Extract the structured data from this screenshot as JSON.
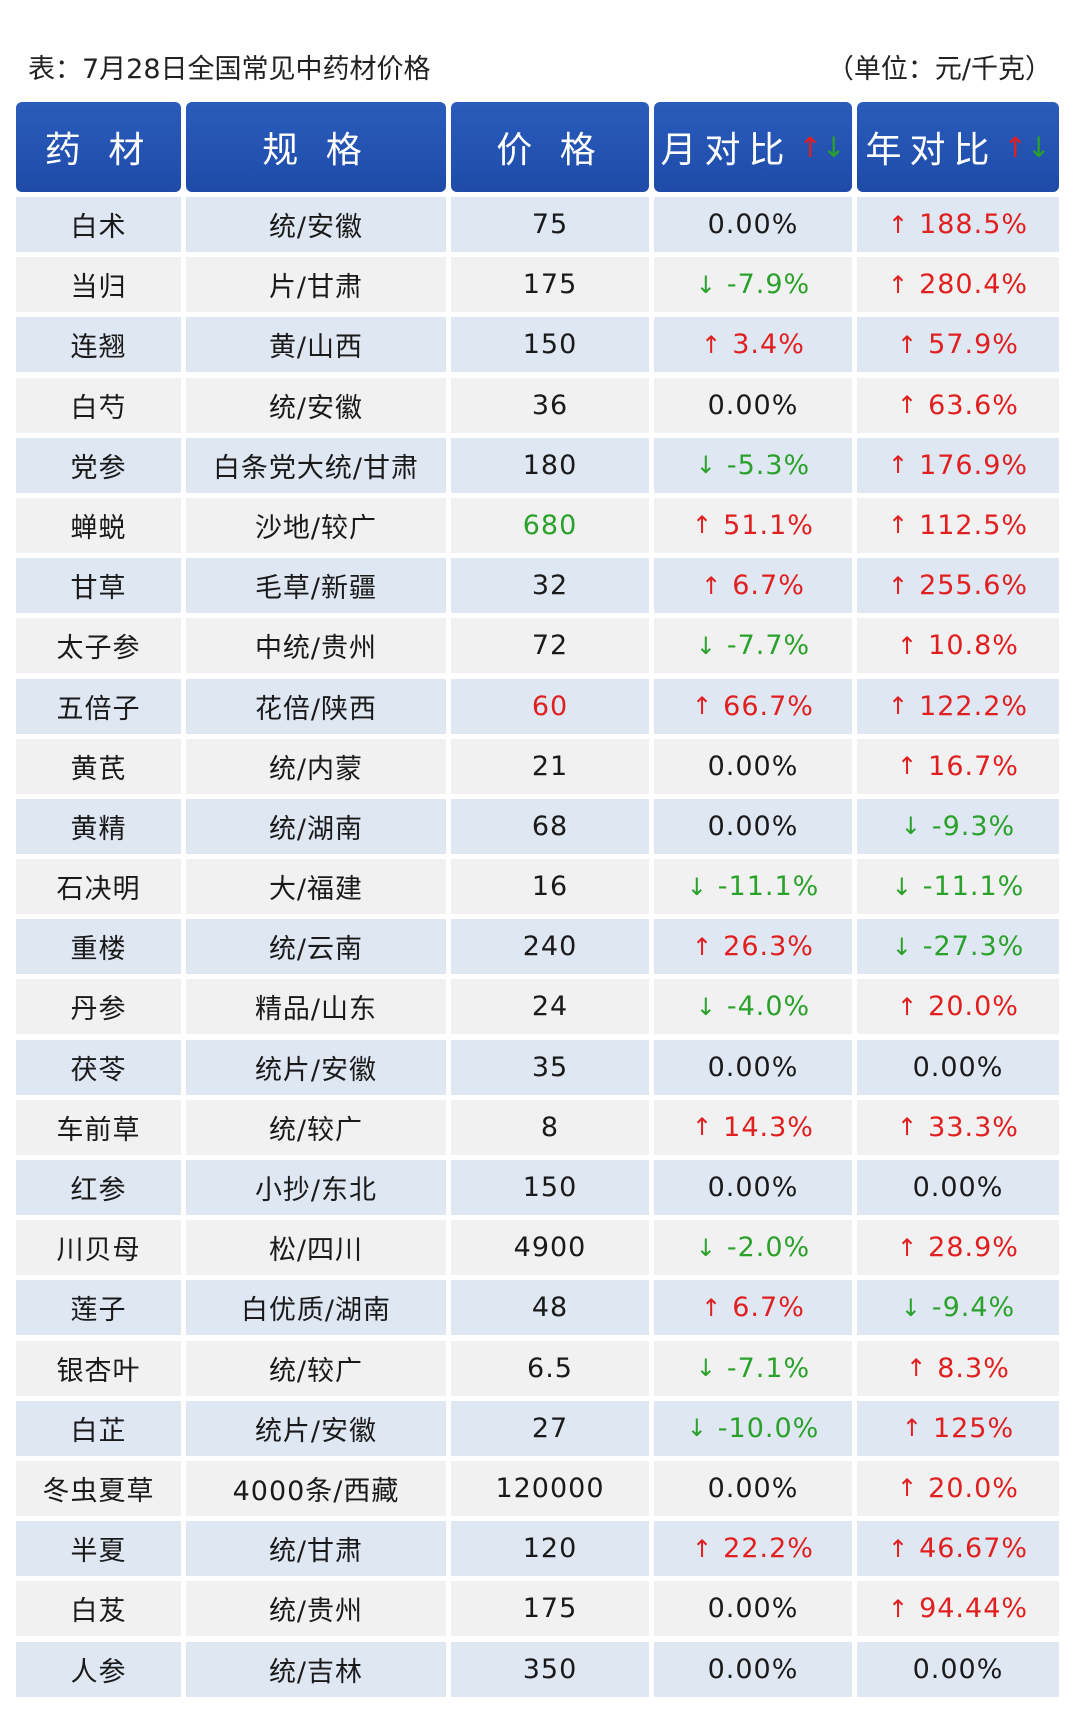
{
  "caption": {
    "title": "表：7月28日全国常见中药材价格",
    "unit": "（单位：元/千克）"
  },
  "header": [
    "药 材",
    "规 格",
    "价 格",
    "月对比",
    "年对比"
  ],
  "colors": {
    "header_bg": "#2a5cbc",
    "row_blue": "#dfe7f3",
    "row_gray": "#f1f1f1",
    "up": "#e02020",
    "down": "#2aa12a"
  },
  "rows": [
    {
      "name": "白术",
      "spec": "统/安徽",
      "price": "75",
      "month": {
        "dir": "flat",
        "value": "0.00%"
      },
      "year": {
        "dir": "up",
        "value": "188.5%"
      }
    },
    {
      "name": "当归",
      "spec": "片/甘肃",
      "price": "175",
      "month": {
        "dir": "down",
        "value": "-7.9%"
      },
      "year": {
        "dir": "up",
        "value": "280.4%"
      }
    },
    {
      "name": "连翘",
      "spec": "黄/山西",
      "price": "150",
      "month": {
        "dir": "up",
        "value": "3.4%"
      },
      "year": {
        "dir": "up",
        "value": "57.9%"
      }
    },
    {
      "name": "白芍",
      "spec": "统/安徽",
      "price": "36",
      "month": {
        "dir": "flat",
        "value": "0.00%"
      },
      "year": {
        "dir": "up",
        "value": "63.6%"
      }
    },
    {
      "name": "党参",
      "spec": "白条党大统/甘肃",
      "price": "180",
      "month": {
        "dir": "down",
        "value": "-5.3%"
      },
      "year": {
        "dir": "up",
        "value": "176.9%"
      }
    },
    {
      "name": "蝉蜕",
      "spec": "沙地/较广",
      "price": "680",
      "price_color": "green",
      "month": {
        "dir": "up",
        "value": "51.1%"
      },
      "year": {
        "dir": "up",
        "value": "112.5%"
      }
    },
    {
      "name": "甘草",
      "spec": "毛草/新疆",
      "price": "32",
      "month": {
        "dir": "up",
        "value": "6.7%"
      },
      "year": {
        "dir": "up",
        "value": "255.6%"
      }
    },
    {
      "name": "太子参",
      "spec": "中统/贵州",
      "price": "72",
      "month": {
        "dir": "down",
        "value": "-7.7%"
      },
      "year": {
        "dir": "up",
        "value": "10.8%"
      }
    },
    {
      "name": "五倍子",
      "spec": "花倍/陕西",
      "price": "60",
      "price_color": "red",
      "month": {
        "dir": "up",
        "value": "66.7%"
      },
      "year": {
        "dir": "up",
        "value": "122.2%"
      }
    },
    {
      "name": "黄芪",
      "spec": "统/内蒙",
      "price": "21",
      "month": {
        "dir": "flat",
        "value": "0.00%"
      },
      "year": {
        "dir": "up",
        "value": "16.7%"
      }
    },
    {
      "name": "黄精",
      "spec": "统/湖南",
      "price": "68",
      "month": {
        "dir": "flat",
        "value": "0.00%"
      },
      "year": {
        "dir": "down",
        "value": "-9.3%"
      }
    },
    {
      "name": "石决明",
      "spec": "大/福建",
      "price": "16",
      "month": {
        "dir": "down",
        "value": "-11.1%"
      },
      "year": {
        "dir": "down",
        "value": "-11.1%"
      }
    },
    {
      "name": "重楼",
      "spec": "统/云南",
      "price": "240",
      "month": {
        "dir": "up",
        "value": "26.3%"
      },
      "year": {
        "dir": "down",
        "value": "-27.3%"
      }
    },
    {
      "name": "丹参",
      "spec": "精品/山东",
      "price": "24",
      "month": {
        "dir": "down",
        "value": "-4.0%"
      },
      "year": {
        "dir": "up",
        "value": "20.0%"
      }
    },
    {
      "name": "茯苓",
      "spec": "统片/安徽",
      "price": "35",
      "month": {
        "dir": "flat",
        "value": "0.00%"
      },
      "year": {
        "dir": "flat",
        "value": "0.00%"
      }
    },
    {
      "name": "车前草",
      "spec": "统/较广",
      "price": "8",
      "month": {
        "dir": "up",
        "value": "14.3%"
      },
      "year": {
        "dir": "up",
        "value": "33.3%"
      }
    },
    {
      "name": "红参",
      "spec": "小抄/东北",
      "price": "150",
      "month": {
        "dir": "flat",
        "value": "0.00%"
      },
      "year": {
        "dir": "flat",
        "value": "0.00%"
      }
    },
    {
      "name": "川贝母",
      "spec": "松/四川",
      "price": "4900",
      "month": {
        "dir": "down",
        "value": "-2.0%"
      },
      "year": {
        "dir": "up",
        "value": "28.9%"
      }
    },
    {
      "name": "莲子",
      "spec": "白优质/湖南",
      "price": "48",
      "month": {
        "dir": "up",
        "value": "6.7%"
      },
      "year": {
        "dir": "down",
        "value": "-9.4%"
      }
    },
    {
      "name": "银杏叶",
      "spec": "统/较广",
      "price": "6.5",
      "month": {
        "dir": "down",
        "value": "-7.1%"
      },
      "year": {
        "dir": "up",
        "value": "8.3%"
      }
    },
    {
      "name": "白芷",
      "spec": "统片/安徽",
      "price": "27",
      "month": {
        "dir": "down",
        "value": "-10.0%"
      },
      "year": {
        "dir": "up",
        "value": "125%"
      }
    },
    {
      "name": "冬虫夏草",
      "spec": "4000条/西藏",
      "price": "120000",
      "month": {
        "dir": "flat",
        "value": "0.00%"
      },
      "year": {
        "dir": "up",
        "value": "20.0%"
      }
    },
    {
      "name": "半夏",
      "spec": "统/甘肃",
      "price": "120",
      "month": {
        "dir": "up",
        "value": "22.2%"
      },
      "year": {
        "dir": "up",
        "value": "46.67%"
      }
    },
    {
      "name": "白芨",
      "spec": "统/贵州",
      "price": "175",
      "month": {
        "dir": "flat",
        "value": "0.00%"
      },
      "year": {
        "dir": "up",
        "value": "94.44%"
      }
    },
    {
      "name": "人参",
      "spec": "统/吉林",
      "price": "350",
      "month": {
        "dir": "flat",
        "value": "0.00%"
      },
      "year": {
        "dir": "flat",
        "value": "0.00%"
      }
    }
  ]
}
